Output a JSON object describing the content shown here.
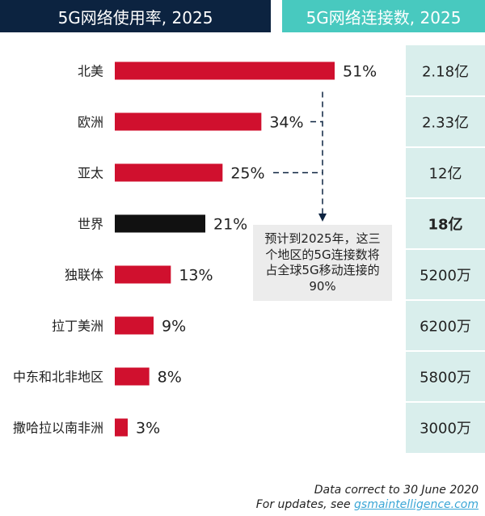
{
  "headers": {
    "left": "5G网络使用率, 2025",
    "right": "5G网络连接数, 2025"
  },
  "chart_data": {
    "type": "bar",
    "title": "5G网络使用率, 2025",
    "categories": [
      "北美",
      "欧洲",
      "亚太",
      "世界",
      "独联体",
      "拉丁美洲",
      "中东和北非地区",
      "撒哈拉以南非洲"
    ],
    "values": [
      51,
      34,
      25,
      21,
      13,
      9,
      8,
      3
    ],
    "value_labels": [
      "51%",
      "34%",
      "25%",
      "21%",
      "13%",
      "9%",
      "8%",
      "3%"
    ],
    "bar_colors": [
      "#d0102e",
      "#d0102e",
      "#d0102e",
      "#111111",
      "#d0102e",
      "#d0102e",
      "#d0102e",
      "#d0102e"
    ],
    "xlim": [
      0,
      51
    ],
    "connections_title": "5G网络连接数, 2025",
    "connections": [
      "2.18亿",
      "2.33亿",
      "12亿",
      "18亿",
      "5200万",
      "6200万",
      "5800万",
      "3000万"
    ],
    "connections_bold": [
      false,
      false,
      false,
      true,
      false,
      false,
      false,
      false
    ]
  },
  "callout": "预计到2025年，这三个地区的5G连接数将占全球5G移动连接的90%",
  "footer": {
    "line1": "Data correct to 30 June 2020",
    "line2_prefix": "For updates, see ",
    "line2_link": "gsmaintelligence.com"
  },
  "colors": {
    "header_left": "#0c2340",
    "header_right": "#48c9bf",
    "bar": "#d0102e",
    "bar_highlight": "#111111",
    "panel": "#d9eeec",
    "callout_bg": "#ececec",
    "link": "#3aa6d6"
  }
}
